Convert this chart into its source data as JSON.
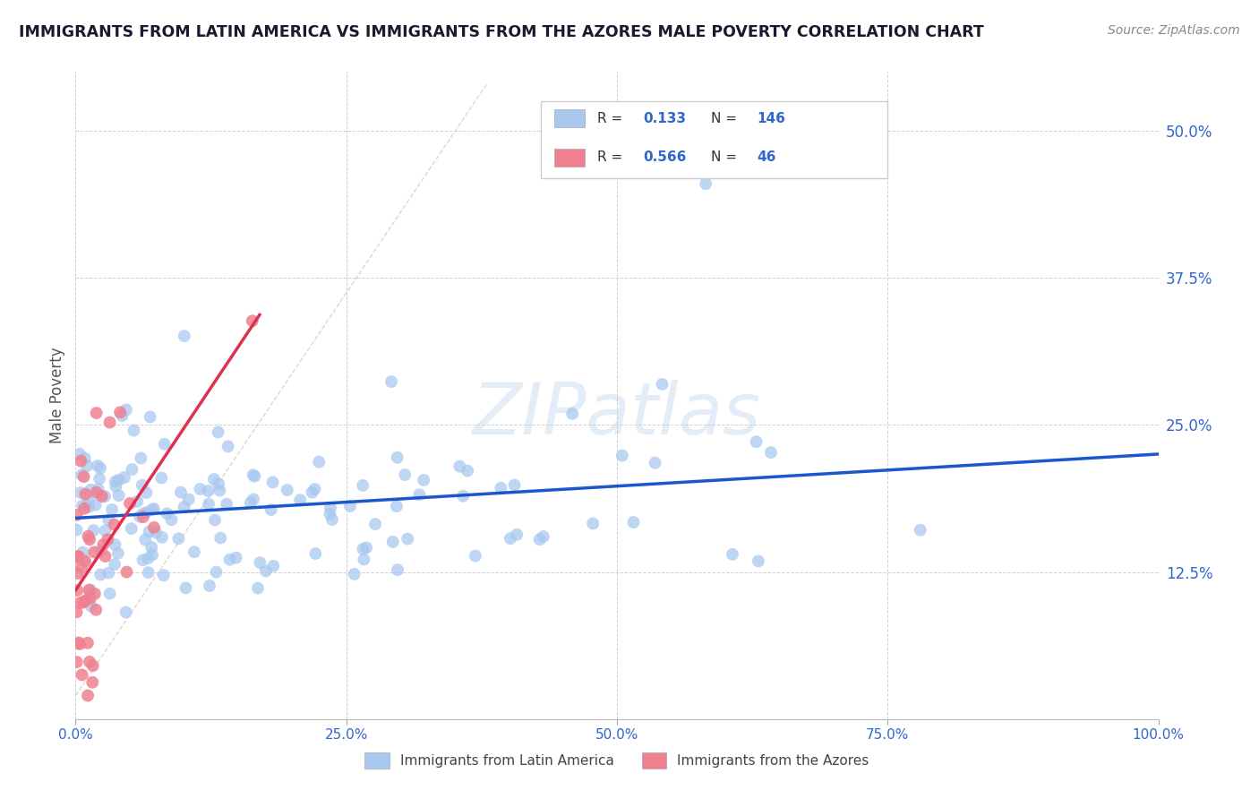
{
  "title": "IMMIGRANTS FROM LATIN AMERICA VS IMMIGRANTS FROM THE AZORES MALE POVERTY CORRELATION CHART",
  "source": "Source: ZipAtlas.com",
  "ylabel": "Male Poverty",
  "ytick_labels": [
    "12.5%",
    "25.0%",
    "37.5%",
    "50.0%"
  ],
  "ytick_values": [
    0.125,
    0.25,
    0.375,
    0.5
  ],
  "xtick_labels": [
    "0.0%",
    "25.0%",
    "50.0%",
    "75.0%",
    "100.0%"
  ],
  "xtick_values": [
    0.0,
    0.25,
    0.5,
    0.75,
    1.0
  ],
  "xlim": [
    0.0,
    1.0
  ],
  "ylim": [
    0.0,
    0.55
  ],
  "blue_R": 0.133,
  "blue_N": 146,
  "pink_R": 0.566,
  "pink_N": 46,
  "blue_color": "#a8c8f0",
  "pink_color": "#f08090",
  "blue_line_color": "#1a56cc",
  "pink_line_color": "#e03050",
  "legend_label_blue": "Immigrants from Latin America",
  "legend_label_pink": "Immigrants from the Azores",
  "watermark": "ZIPatlas",
  "background_color": "#ffffff",
  "grid_color": "#cccccc",
  "title_color": "#1a1a2e",
  "axis_label_color": "#3366cc"
}
